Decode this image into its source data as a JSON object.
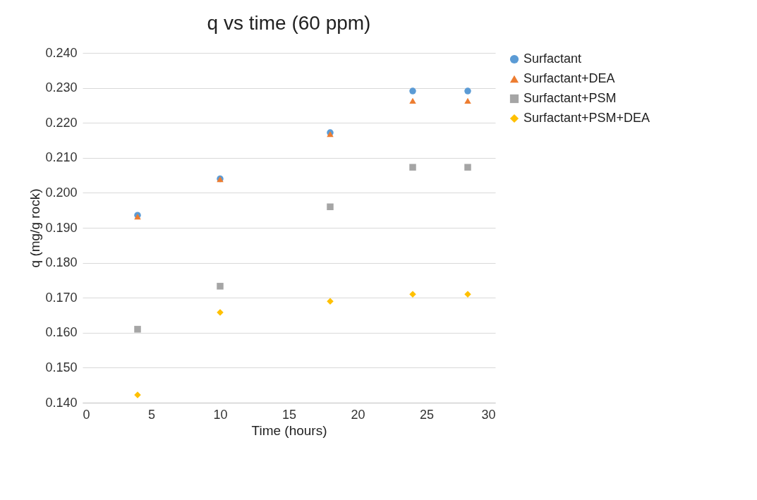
{
  "chart_data": {
    "type": "scatter",
    "title": "q vs time (60 ppm)",
    "xlabel": "Time (hours)",
    "ylabel": "q (mg/g rock)",
    "x": [
      4,
      10,
      18,
      24,
      28
    ],
    "series": [
      {
        "name": "Surfactant",
        "color": "#5b9bd5",
        "marker": "circle",
        "values": [
          0.1936,
          0.204,
          0.2172,
          0.2291,
          0.2291
        ]
      },
      {
        "name": "Surfactant+DEA",
        "color": "#ed7d31",
        "marker": "triangle",
        "values": [
          0.1932,
          0.2039,
          0.2168,
          0.2263,
          0.2263
        ]
      },
      {
        "name": "Surfactant+PSM",
        "color": "#a5a5a5",
        "marker": "square",
        "values": [
          0.161,
          0.1733,
          0.196,
          0.2073,
          0.2073
        ]
      },
      {
        "name": "Surfactant+PSM+DEA",
        "color": "#ffc000",
        "marker": "diamond",
        "values": [
          0.1422,
          0.1658,
          0.169,
          0.171,
          0.171
        ]
      }
    ],
    "xlim": [
      0,
      30
    ],
    "xticks": [
      0,
      5,
      10,
      15,
      20,
      25,
      30
    ],
    "ylim": [
      0.14,
      0.24
    ],
    "yticks": [
      {
        "value": 0.14,
        "label": "0.140"
      },
      {
        "value": 0.15,
        "label": "0.150"
      },
      {
        "value": 0.16,
        "label": "0.160"
      },
      {
        "value": 0.17,
        "label": "0.170"
      },
      {
        "value": 0.18,
        "label": "0.180"
      },
      {
        "value": 0.19,
        "label": "0.190"
      },
      {
        "value": 0.2,
        "label": "0.200"
      },
      {
        "value": 0.21,
        "label": "0.210"
      },
      {
        "value": 0.22,
        "label": "0.220"
      },
      {
        "value": 0.23,
        "label": "0.230"
      },
      {
        "value": 0.24,
        "label": "0.240"
      }
    ],
    "grid": "y",
    "legend": "right"
  }
}
